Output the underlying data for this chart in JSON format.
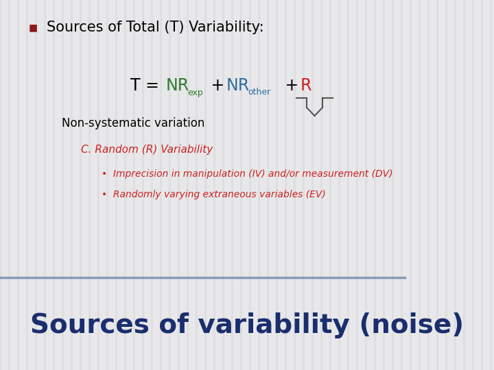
{
  "bg_color": "#e8e8ea",
  "bg_stripe_color": "#d8d8dc",
  "bottom_text": "Sources of variability (noise)",
  "bottom_text_color": "#1a2e6e",
  "bullet_color": "#8b1a1a",
  "title_text": "Sources of Total (T) Variability:",
  "title_color": "#000000",
  "formula_color_black": "#000000",
  "formula_color_green": "#2e7b2e",
  "formula_color_blue": "#2e6ea0",
  "formula_color_red": "#cc2222",
  "nonsys_text": "Non-systematic variation",
  "nonsys_color": "#000000",
  "c_random_text": "C. Random (R) Variability",
  "c_random_color": "#cc2222",
  "bullet1_text": "Imprecision in manipulation (IV) and/or measurement (DV)",
  "bullet2_text": "Randomly varying extraneous variables (EV)",
  "bullet_text_color": "#cc2222",
  "separator_color": "#8899bb",
  "separator_line_color": "#7788aa"
}
